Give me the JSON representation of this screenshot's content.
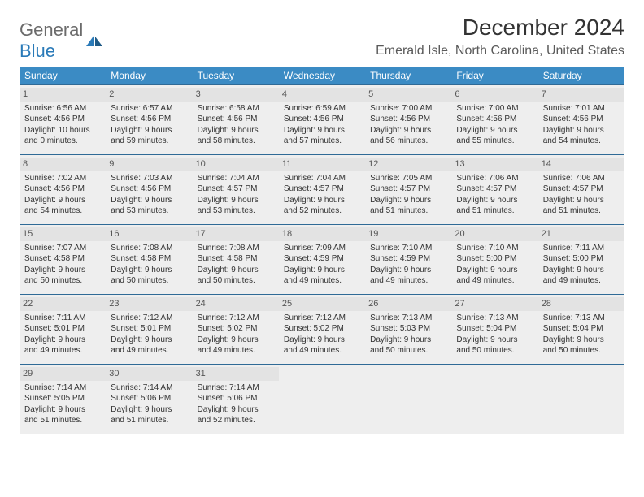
{
  "logo": {
    "word1": "General",
    "word2": "Blue"
  },
  "title": "December 2024",
  "location": "Emerald Isle, North Carolina, United States",
  "colors": {
    "header_bg": "#3b8bc4",
    "header_text": "#ffffff",
    "daynum_bg": "#e3e3e3",
    "row_border": "#2f6a96",
    "cell_bg": "#eeeeee",
    "body_text": "#333333",
    "logo_gray": "#6b6b6b",
    "logo_blue": "#2a7ab8"
  },
  "weekdays": [
    "Sunday",
    "Monday",
    "Tuesday",
    "Wednesday",
    "Thursday",
    "Friday",
    "Saturday"
  ],
  "weeks": [
    [
      {
        "d": 1,
        "sr": "6:56 AM",
        "ss": "4:56 PM",
        "dl": "10 hours and 0 minutes."
      },
      {
        "d": 2,
        "sr": "6:57 AM",
        "ss": "4:56 PM",
        "dl": "9 hours and 59 minutes."
      },
      {
        "d": 3,
        "sr": "6:58 AM",
        "ss": "4:56 PM",
        "dl": "9 hours and 58 minutes."
      },
      {
        "d": 4,
        "sr": "6:59 AM",
        "ss": "4:56 PM",
        "dl": "9 hours and 57 minutes."
      },
      {
        "d": 5,
        "sr": "7:00 AM",
        "ss": "4:56 PM",
        "dl": "9 hours and 56 minutes."
      },
      {
        "d": 6,
        "sr": "7:00 AM",
        "ss": "4:56 PM",
        "dl": "9 hours and 55 minutes."
      },
      {
        "d": 7,
        "sr": "7:01 AM",
        "ss": "4:56 PM",
        "dl": "9 hours and 54 minutes."
      }
    ],
    [
      {
        "d": 8,
        "sr": "7:02 AM",
        "ss": "4:56 PM",
        "dl": "9 hours and 54 minutes."
      },
      {
        "d": 9,
        "sr": "7:03 AM",
        "ss": "4:56 PM",
        "dl": "9 hours and 53 minutes."
      },
      {
        "d": 10,
        "sr": "7:04 AM",
        "ss": "4:57 PM",
        "dl": "9 hours and 53 minutes."
      },
      {
        "d": 11,
        "sr": "7:04 AM",
        "ss": "4:57 PM",
        "dl": "9 hours and 52 minutes."
      },
      {
        "d": 12,
        "sr": "7:05 AM",
        "ss": "4:57 PM",
        "dl": "9 hours and 51 minutes."
      },
      {
        "d": 13,
        "sr": "7:06 AM",
        "ss": "4:57 PM",
        "dl": "9 hours and 51 minutes."
      },
      {
        "d": 14,
        "sr": "7:06 AM",
        "ss": "4:57 PM",
        "dl": "9 hours and 51 minutes."
      }
    ],
    [
      {
        "d": 15,
        "sr": "7:07 AM",
        "ss": "4:58 PM",
        "dl": "9 hours and 50 minutes."
      },
      {
        "d": 16,
        "sr": "7:08 AM",
        "ss": "4:58 PM",
        "dl": "9 hours and 50 minutes."
      },
      {
        "d": 17,
        "sr": "7:08 AM",
        "ss": "4:58 PM",
        "dl": "9 hours and 50 minutes."
      },
      {
        "d": 18,
        "sr": "7:09 AM",
        "ss": "4:59 PM",
        "dl": "9 hours and 49 minutes."
      },
      {
        "d": 19,
        "sr": "7:10 AM",
        "ss": "4:59 PM",
        "dl": "9 hours and 49 minutes."
      },
      {
        "d": 20,
        "sr": "7:10 AM",
        "ss": "5:00 PM",
        "dl": "9 hours and 49 minutes."
      },
      {
        "d": 21,
        "sr": "7:11 AM",
        "ss": "5:00 PM",
        "dl": "9 hours and 49 minutes."
      }
    ],
    [
      {
        "d": 22,
        "sr": "7:11 AM",
        "ss": "5:01 PM",
        "dl": "9 hours and 49 minutes."
      },
      {
        "d": 23,
        "sr": "7:12 AM",
        "ss": "5:01 PM",
        "dl": "9 hours and 49 minutes."
      },
      {
        "d": 24,
        "sr": "7:12 AM",
        "ss": "5:02 PM",
        "dl": "9 hours and 49 minutes."
      },
      {
        "d": 25,
        "sr": "7:12 AM",
        "ss": "5:02 PM",
        "dl": "9 hours and 49 minutes."
      },
      {
        "d": 26,
        "sr": "7:13 AM",
        "ss": "5:03 PM",
        "dl": "9 hours and 50 minutes."
      },
      {
        "d": 27,
        "sr": "7:13 AM",
        "ss": "5:04 PM",
        "dl": "9 hours and 50 minutes."
      },
      {
        "d": 28,
        "sr": "7:13 AM",
        "ss": "5:04 PM",
        "dl": "9 hours and 50 minutes."
      }
    ],
    [
      {
        "d": 29,
        "sr": "7:14 AM",
        "ss": "5:05 PM",
        "dl": "9 hours and 51 minutes."
      },
      {
        "d": 30,
        "sr": "7:14 AM",
        "ss": "5:06 PM",
        "dl": "9 hours and 51 minutes."
      },
      {
        "d": 31,
        "sr": "7:14 AM",
        "ss": "5:06 PM",
        "dl": "9 hours and 52 minutes."
      },
      null,
      null,
      null,
      null
    ]
  ],
  "labels": {
    "sunrise": "Sunrise:",
    "sunset": "Sunset:",
    "daylight": "Daylight:"
  }
}
